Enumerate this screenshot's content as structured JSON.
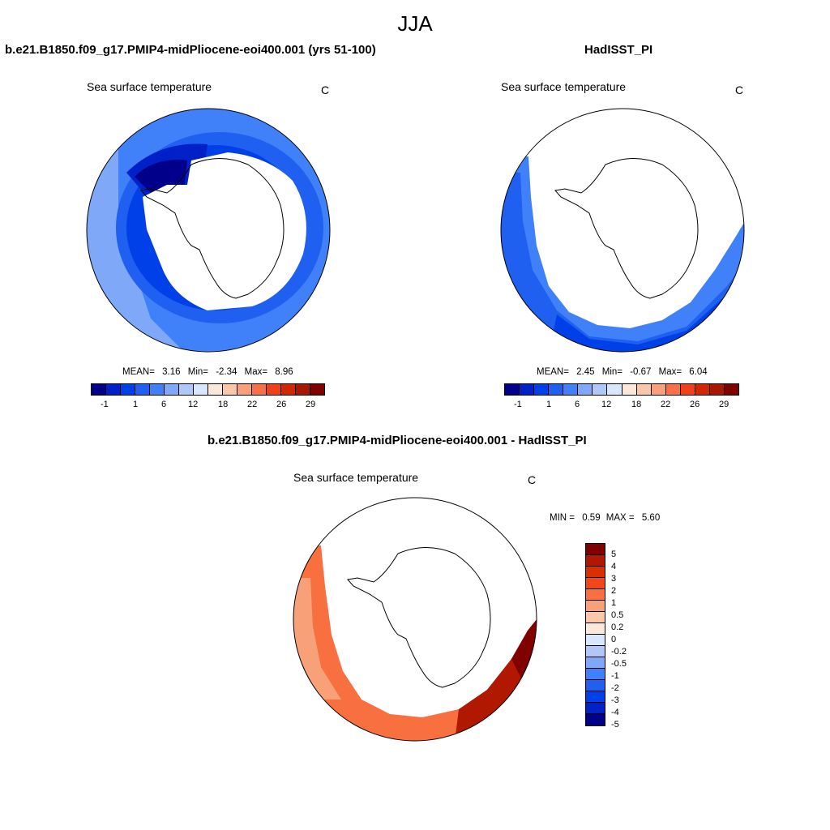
{
  "figure_title": "JJA",
  "panels": [
    {
      "case_name": "b.e21.B1850.f09_g17.PMIP4-midPliocene-eoi400.001 (yrs 51-100)",
      "variable": "Sea surface temperature",
      "units": "C",
      "stats": {
        "mean_label": "MEAN=",
        "mean": "3.16",
        "min_label": "Min=",
        "min": "-2.34",
        "max_label": "Max=",
        "max": "8.96"
      }
    },
    {
      "case_name": "HadISST_PI",
      "variable": "Sea surface temperature",
      "units": "C",
      "stats": {
        "mean_label": "MEAN=",
        "mean": "2.45",
        "min_label": "Min=",
        "min": "-0.67",
        "max_label": "Max=",
        "max": "6.04"
      }
    },
    {
      "case_name": "b.e21.B1850.f09_g17.PMIP4-midPliocene-eoi400.001 - HadISST_PI",
      "variable": "Sea surface temperature",
      "units": "C",
      "stats": {
        "min_label": "MIN =",
        "min": "0.59",
        "max_label": "MAX =",
        "max": "5.60"
      }
    }
  ],
  "abs_colorbar": {
    "tick_labels": [
      "-1",
      "1",
      "6",
      "12",
      "18",
      "22",
      "26",
      "29"
    ],
    "colors": [
      "#00008a",
      "#0020c8",
      "#0040e8",
      "#2060f0",
      "#4080f8",
      "#80a8f8",
      "#b0c8f8",
      "#d8e8fc",
      "#fce8d8",
      "#f8c8a8",
      "#f8a078",
      "#f87048",
      "#f04018",
      "#d02800",
      "#a81800",
      "#800000"
    ]
  },
  "diff_colorbar": {
    "tick_labels": [
      "5",
      "4",
      "3",
      "2",
      "1",
      "0.5",
      "0.2",
      "0",
      "-0.2",
      "-0.5",
      "-1",
      "-2",
      "-3",
      "-4",
      "-5"
    ],
    "colors": [
      "#800000",
      "#b01800",
      "#d83000",
      "#f04818",
      "#f87040",
      "#f8a078",
      "#fcc8a8",
      "#fce8d8",
      "#d8e8fc",
      "#b0c8f8",
      "#80a8f8",
      "#4080f8",
      "#2060f0",
      "#0040e8",
      "#0020c8",
      "#00008a"
    ]
  }
}
